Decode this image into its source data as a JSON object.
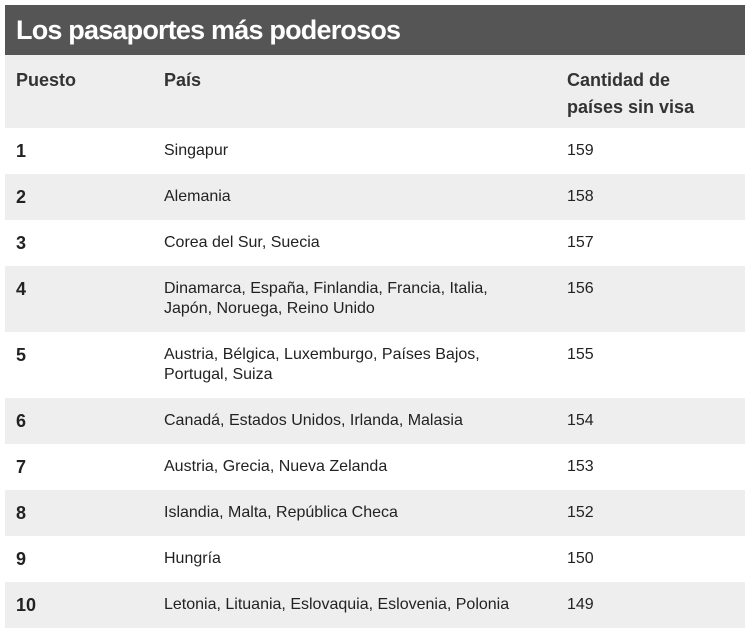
{
  "header": {
    "title": "Los pasaportes más poderosos"
  },
  "table": {
    "columns": [
      "Puesto",
      "País",
      "Cantidad de países sin visa"
    ],
    "rows": [
      [
        1,
        "Singapur",
        159
      ],
      [
        2,
        "Alemania",
        158
      ],
      [
        3,
        "Corea del Sur, Suecia",
        157
      ],
      [
        4,
        "Dinamarca, España, Finlandia, Francia, Italia, Japón, Noruega, Reino Unido",
        156
      ],
      [
        5,
        "Austria, Bélgica, Luxemburgo, Países Bajos, Portugal, Suiza",
        155
      ],
      [
        6,
        "Canadá, Estados Unidos, Irlanda, Malasia",
        154
      ],
      [
        7,
        "Austria, Grecia, Nueva Zelanda",
        153
      ],
      [
        8,
        "Islandia, Malta, República Checa",
        152
      ],
      [
        9,
        "Hungría",
        150
      ],
      [
        10,
        "Letonia, Lituania, Eslovaquia, Eslovenia, Polonia",
        149
      ]
    ]
  }
}
